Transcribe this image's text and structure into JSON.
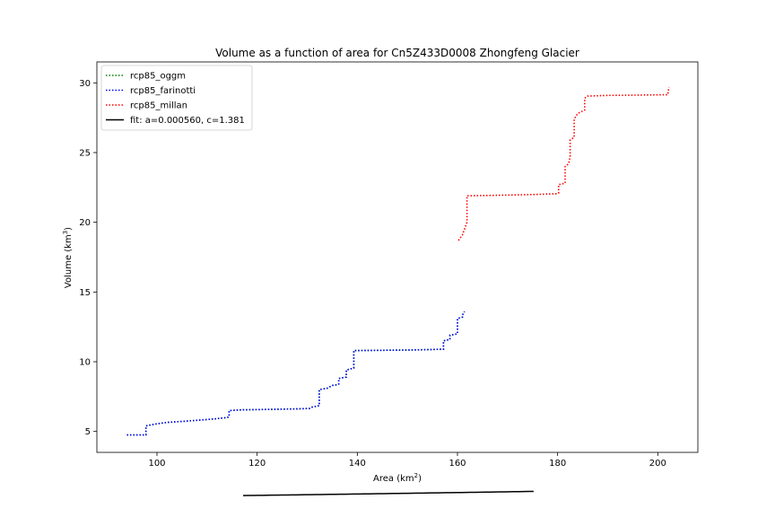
{
  "chart_data": {
    "type": "line",
    "title": "Volume as a function of area for Cn5Z433D0008 Zhongfeng Glacier",
    "xlabel_main": "Area (km",
    "xlabel_sup": "2",
    "xlabel_tail": ")",
    "ylabel_main": "Volume (km",
    "ylabel_sup": "3",
    "ylabel_tail": ")",
    "xlim": [
      88,
      208
    ],
    "ylim": [
      3.5,
      31.5
    ],
    "xticks": [
      100,
      120,
      140,
      160,
      180,
      200
    ],
    "yticks": [
      5,
      10,
      15,
      20,
      25,
      30
    ],
    "grid": false,
    "legend_position": "top-left",
    "series": [
      {
        "name": "rcp85_oggm",
        "style": "dotted",
        "color": "#008000",
        "x": [
          94.0,
          97.8,
          97.8,
          98.5,
          100.0,
          102.0,
          105.0,
          108.0,
          111.5,
          114.0,
          114.4,
          114.4,
          117.0,
          122.0,
          128.0,
          130.5,
          131.0,
          132.4,
          132.4,
          134.0,
          135.0,
          136.0,
          136.3,
          136.3,
          137.8,
          137.8,
          139.3,
          139.3,
          145.0,
          152.0,
          157.2,
          157.2,
          158.5,
          158.5,
          160.0,
          160.0,
          161.0,
          161.0,
          161.4
        ],
        "y": [
          4.75,
          4.75,
          5.4,
          5.45,
          5.55,
          5.65,
          5.72,
          5.8,
          5.9,
          6.0,
          6.05,
          6.5,
          6.55,
          6.58,
          6.62,
          6.65,
          6.75,
          6.85,
          8.0,
          8.1,
          8.3,
          8.35,
          8.4,
          8.8,
          8.9,
          9.4,
          9.55,
          10.8,
          10.82,
          10.85,
          10.9,
          11.5,
          11.6,
          11.9,
          12.0,
          13.1,
          13.2,
          13.35,
          13.6
        ]
      },
      {
        "name": "rcp85_farinotti",
        "style": "dotted",
        "color": "#0000ff",
        "x": [
          94.0,
          97.8,
          97.8,
          98.5,
          100.0,
          102.0,
          105.0,
          108.0,
          111.5,
          114.0,
          114.4,
          114.4,
          117.0,
          122.0,
          128.0,
          130.5,
          131.0,
          132.4,
          132.4,
          134.0,
          135.0,
          136.0,
          136.3,
          136.3,
          137.8,
          137.8,
          139.3,
          139.3,
          145.0,
          152.0,
          157.2,
          157.2,
          158.5,
          158.5,
          160.0,
          160.0,
          161.0,
          161.0,
          161.4
        ],
        "y": [
          4.75,
          4.75,
          5.4,
          5.45,
          5.55,
          5.65,
          5.72,
          5.8,
          5.9,
          6.0,
          6.05,
          6.5,
          6.55,
          6.58,
          6.62,
          6.65,
          6.75,
          6.85,
          8.0,
          8.1,
          8.3,
          8.35,
          8.4,
          8.8,
          8.9,
          9.4,
          9.55,
          10.8,
          10.82,
          10.85,
          10.9,
          11.5,
          11.6,
          11.9,
          12.0,
          13.1,
          13.2,
          13.35,
          13.6
        ]
      },
      {
        "name": "rcp85_millan",
        "style": "dotted",
        "color": "#ff0000",
        "x": [
          160.2,
          161.0,
          161.5,
          161.9,
          161.9,
          170.0,
          176.0,
          180.0,
          180.2,
          180.2,
          181.5,
          181.5,
          182.2,
          182.5,
          182.5,
          183.3,
          183.3,
          184.0,
          184.0,
          185.4,
          185.4,
          186.0,
          190.0,
          196.0,
          202.0,
          202.2
        ],
        "y": [
          18.7,
          19.1,
          19.6,
          20.0,
          21.9,
          21.95,
          22.0,
          22.05,
          22.1,
          22.7,
          22.8,
          24.0,
          24.2,
          24.7,
          25.9,
          26.1,
          27.4,
          27.8,
          27.8,
          28.05,
          28.9,
          29.05,
          29.1,
          29.12,
          29.15,
          29.7
        ]
      },
      {
        "name": "fit: a=0.000560, c=1.381",
        "style": "solid",
        "color": "#000000",
        "fit": {
          "a": 0.00056,
          "c": 1.381,
          "xmin": 117.2,
          "xmax": 175.2
        }
      }
    ]
  }
}
